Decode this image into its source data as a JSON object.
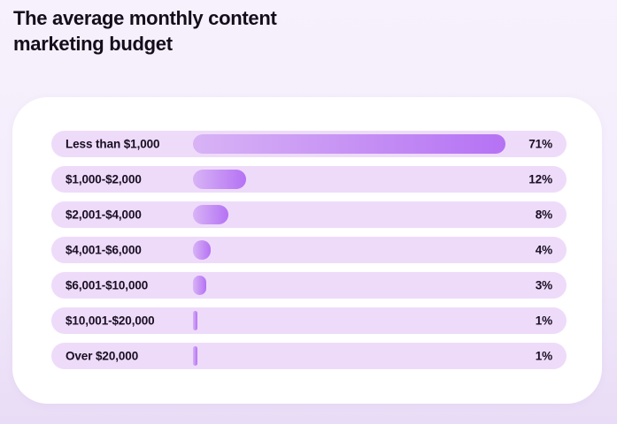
{
  "title": {
    "line1": "The average monthly content",
    "line2": "marketing budget",
    "full": "The average monthly content marketing budget"
  },
  "colors": {
    "page_background_top": "#f7f1fd",
    "page_background_bottom": "#e9dcf6",
    "card_background": "#ffffff",
    "row_pill_background": "#eedbfa",
    "bar_gradient_start": "#d8b3f5",
    "bar_gradient_end": "#b572f4",
    "text": "#140d1b"
  },
  "chart_data": {
    "type": "bar",
    "orientation": "horizontal",
    "title": "The average monthly content marketing budget",
    "categories": [
      "Less than $1,000",
      "$1,000-$2,000",
      "$2,001-$4,000",
      "$4,001-$6,000",
      "$6,001-$10,000",
      "$10,001-$20,000",
      "Over $20,000"
    ],
    "values": [
      71,
      12,
      8,
      4,
      3,
      1,
      1
    ],
    "value_labels": [
      "71%",
      "12%",
      "8%",
      "4%",
      "3%",
      "1%",
      "1%"
    ],
    "xlabel": "",
    "ylabel": "",
    "unit": "percent",
    "xlim": [
      0,
      82
    ],
    "grid": false,
    "legend": false
  }
}
